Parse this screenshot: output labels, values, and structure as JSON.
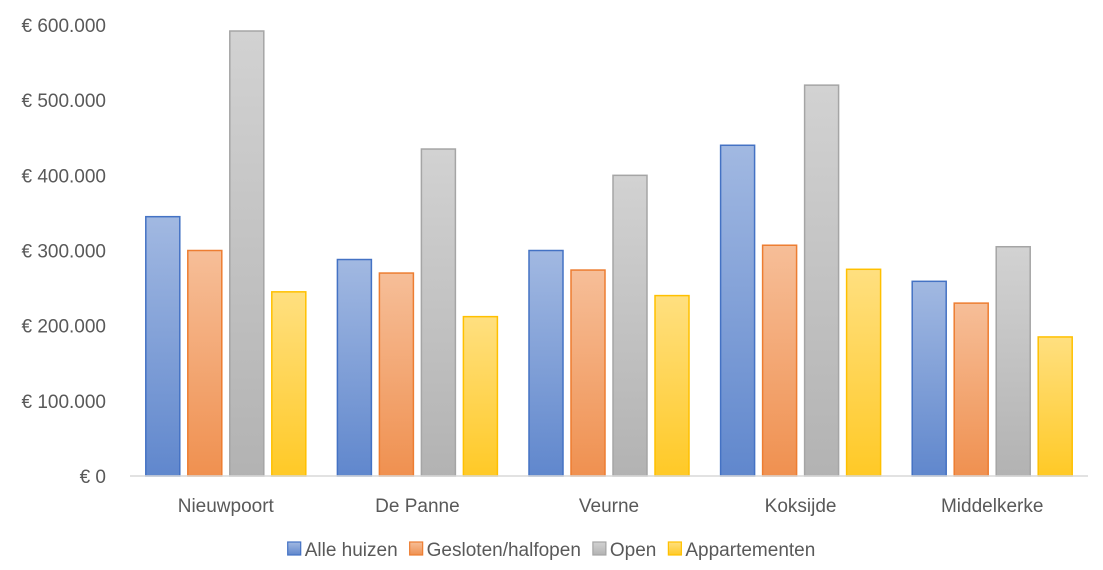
{
  "chart_data": {
    "type": "bar",
    "title": "",
    "xlabel": "",
    "ylabel": "",
    "categories": [
      "Nieuwpoort",
      "De Panne",
      "Veurne",
      "Koksijde",
      "Middelkerke"
    ],
    "series": [
      {
        "name": "Alle huizen",
        "values": [
          345000,
          288000,
          300000,
          440000,
          259000
        ],
        "color": "#4472C4"
      },
      {
        "name": "Gesloten/halfopen",
        "values": [
          300000,
          270000,
          274000,
          307000,
          230000
        ],
        "color": "#ED7D31"
      },
      {
        "name": "Open",
        "values": [
          592000,
          435000,
          400000,
          520000,
          305000
        ],
        "color": "#A5A5A5"
      },
      {
        "name": "Appartementen",
        "values": [
          245000,
          212000,
          240000,
          275000,
          185000
        ],
        "color": "#FFC000"
      }
    ],
    "ylim": [
      0,
      600000
    ],
    "y_ticks": [
      0,
      100000,
      200000,
      300000,
      400000,
      500000,
      600000
    ],
    "y_tick_labels": [
      "€ 0",
      "€ 100.000",
      "€ 200.000",
      "€ 300.000",
      "€ 400.000",
      "€ 500.000",
      "€ 600.000"
    ],
    "grid": false,
    "legend_position": "bottom"
  }
}
